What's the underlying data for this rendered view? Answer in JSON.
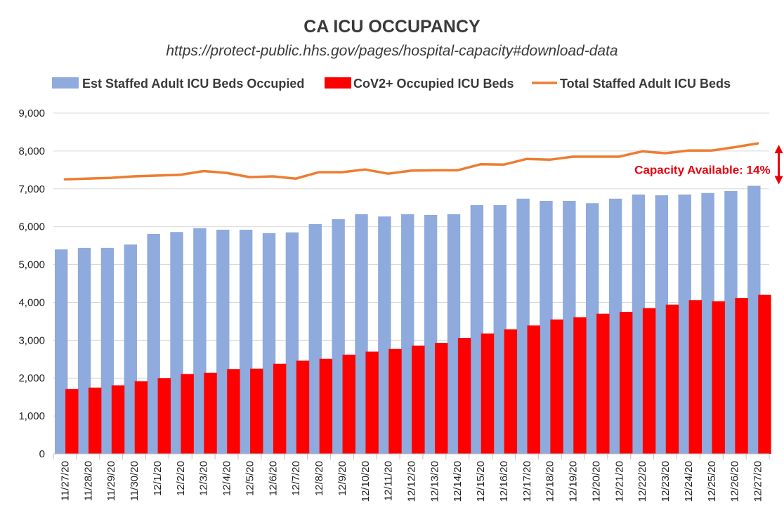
{
  "chart_data": {
    "type": "bar",
    "title": "CA ICU OCCUPANCY",
    "subtitle": "https://protect-public.hhs.gov/pages/hospital-capacity#download-data",
    "categories": [
      "11/27/20",
      "11/28/20",
      "11/29/20",
      "11/30/20",
      "12/1/20",
      "12/2/20",
      "12/3/20",
      "12/4/20",
      "12/5/20",
      "12/6/20",
      "12/7/20",
      "12/8/20",
      "12/9/20",
      "12/10/20",
      "12/11/20",
      "12/12/20",
      "12/13/20",
      "12/14/20",
      "12/15/20",
      "12/16/20",
      "12/17/20",
      "12/18/20",
      "12/19/20",
      "12/20/20",
      "12/21/20",
      "12/22/20",
      "12/23/20",
      "12/24/20",
      "12/25/20",
      "12/26/20",
      "12/27/20"
    ],
    "series": [
      {
        "name": "Est Staffed Adult ICU Beds Occupied",
        "type": "bar",
        "color": "#8faadc",
        "values": [
          5400,
          5440,
          5440,
          5530,
          5810,
          5860,
          5960,
          5920,
          5920,
          5830,
          5850,
          6070,
          6200,
          6330,
          6270,
          6330,
          6310,
          6330,
          6570,
          6570,
          6740,
          6680,
          6680,
          6620,
          6740,
          6850,
          6830,
          6850,
          6890,
          6940,
          7080
        ]
      },
      {
        "name": "CoV2+ Occupied ICU Beds",
        "type": "bar",
        "color": "#ff0000",
        "values": [
          1710,
          1750,
          1810,
          1920,
          2000,
          2110,
          2140,
          2240,
          2250,
          2380,
          2460,
          2510,
          2620,
          2700,
          2770,
          2860,
          2930,
          3060,
          3180,
          3290,
          3390,
          3550,
          3610,
          3700,
          3750,
          3850,
          3940,
          4060,
          4030,
          4120,
          4200
        ]
      },
      {
        "name": "Total Staffed Adult ICU Beds",
        "type": "line",
        "color": "#ed7d31",
        "values": [
          7250,
          7270,
          7290,
          7330,
          7350,
          7370,
          7470,
          7420,
          7310,
          7330,
          7270,
          7440,
          7440,
          7510,
          7400,
          7480,
          7490,
          7490,
          7650,
          7640,
          7790,
          7770,
          7850,
          7850,
          7850,
          7990,
          7940,
          8010,
          8010,
          8100,
          8200
        ]
      }
    ],
    "ylim": [
      0,
      9000
    ],
    "yticks": [
      0,
      1000,
      2000,
      3000,
      4000,
      5000,
      6000,
      7000,
      8000,
      9000
    ],
    "ytick_labels": [
      "0",
      "1,000",
      "2,000",
      "3,000",
      "4,000",
      "5,000",
      "6,000",
      "7,000",
      "8,000",
      "9,000"
    ],
    "grid": true,
    "legend": "top",
    "annotation": {
      "text": "Capacity Available: 14%",
      "color": "#e8000b",
      "category": "12/27/20",
      "from": 7080,
      "to": 8200
    }
  }
}
